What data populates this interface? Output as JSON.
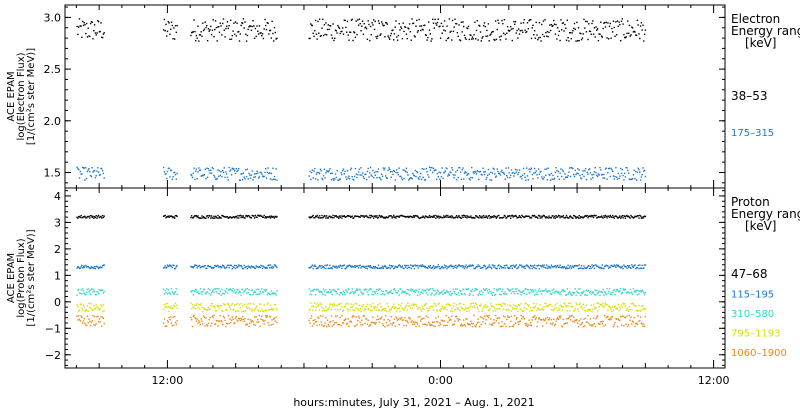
{
  "chart_data": [
    {
      "type": "scatter",
      "panel": "electron",
      "ylabel_lines": [
        "ACE EPAM",
        "log(Electron Flux)",
        "[1/(cm²s ster MeV)]"
      ],
      "legend_title": [
        "Electron",
        "Energy ranges",
        "[keV]"
      ],
      "ylim": [
        1.35,
        3.12
      ],
      "yticks": [
        1.5,
        2.0,
        2.5,
        3.0
      ],
      "ytick_labels": [
        "1.5",
        "2.0",
        "2.5",
        "3.0"
      ],
      "series": [
        {
          "name": "38–53",
          "color": "#000000",
          "level": 2.88,
          "noise": 0.06
        },
        {
          "name": "175–315",
          "color": "#1f77c8",
          "level": 1.49,
          "noise": 0.035
        }
      ]
    },
    {
      "type": "scatter",
      "panel": "proton",
      "ylabel_lines": [
        "ACE EPAM",
        "log(Proton Flux)",
        "[1/(cm²s ster MeV)]"
      ],
      "legend_title": [
        "Proton",
        "Energy ranges",
        "[keV]"
      ],
      "ylim": [
        -2.5,
        4.3
      ],
      "yticks": [
        -2,
        -1,
        0,
        1,
        2,
        3,
        4
      ],
      "ytick_labels": [
        "−2",
        "−1",
        "0",
        "1",
        "2",
        "3",
        "4"
      ],
      "series": [
        {
          "name": "47–68",
          "color": "#000000",
          "level": 3.22,
          "noise": 0.03
        },
        {
          "name": "115–195",
          "color": "#1f77c8",
          "level": 1.33,
          "noise": 0.04
        },
        {
          "name": "310–580",
          "color": "#33d6c9",
          "level": 0.38,
          "noise": 0.07
        },
        {
          "name": "795–1193",
          "color": "#d8e000",
          "level": -0.2,
          "noise": 0.09
        },
        {
          "name": "1060–1900",
          "color": "#e88a1a",
          "level": -0.72,
          "noise": 0.12
        }
      ]
    }
  ],
  "x_axis": {
    "label": "hours:minutes, July 31, 2021 – Aug. 1, 2021",
    "range_hours": [
      7.5,
      36.5
    ],
    "ticks": [
      {
        "hour": 12,
        "label": "12:00"
      },
      {
        "hour": 24,
        "label": "0:00"
      },
      {
        "hour": 36,
        "label": "12:00"
      }
    ],
    "data_segments_hours": [
      [
        8.0,
        9.2
      ],
      [
        11.8,
        12.4
      ],
      [
        13.0,
        16.8
      ],
      [
        18.2,
        33.0
      ]
    ]
  }
}
